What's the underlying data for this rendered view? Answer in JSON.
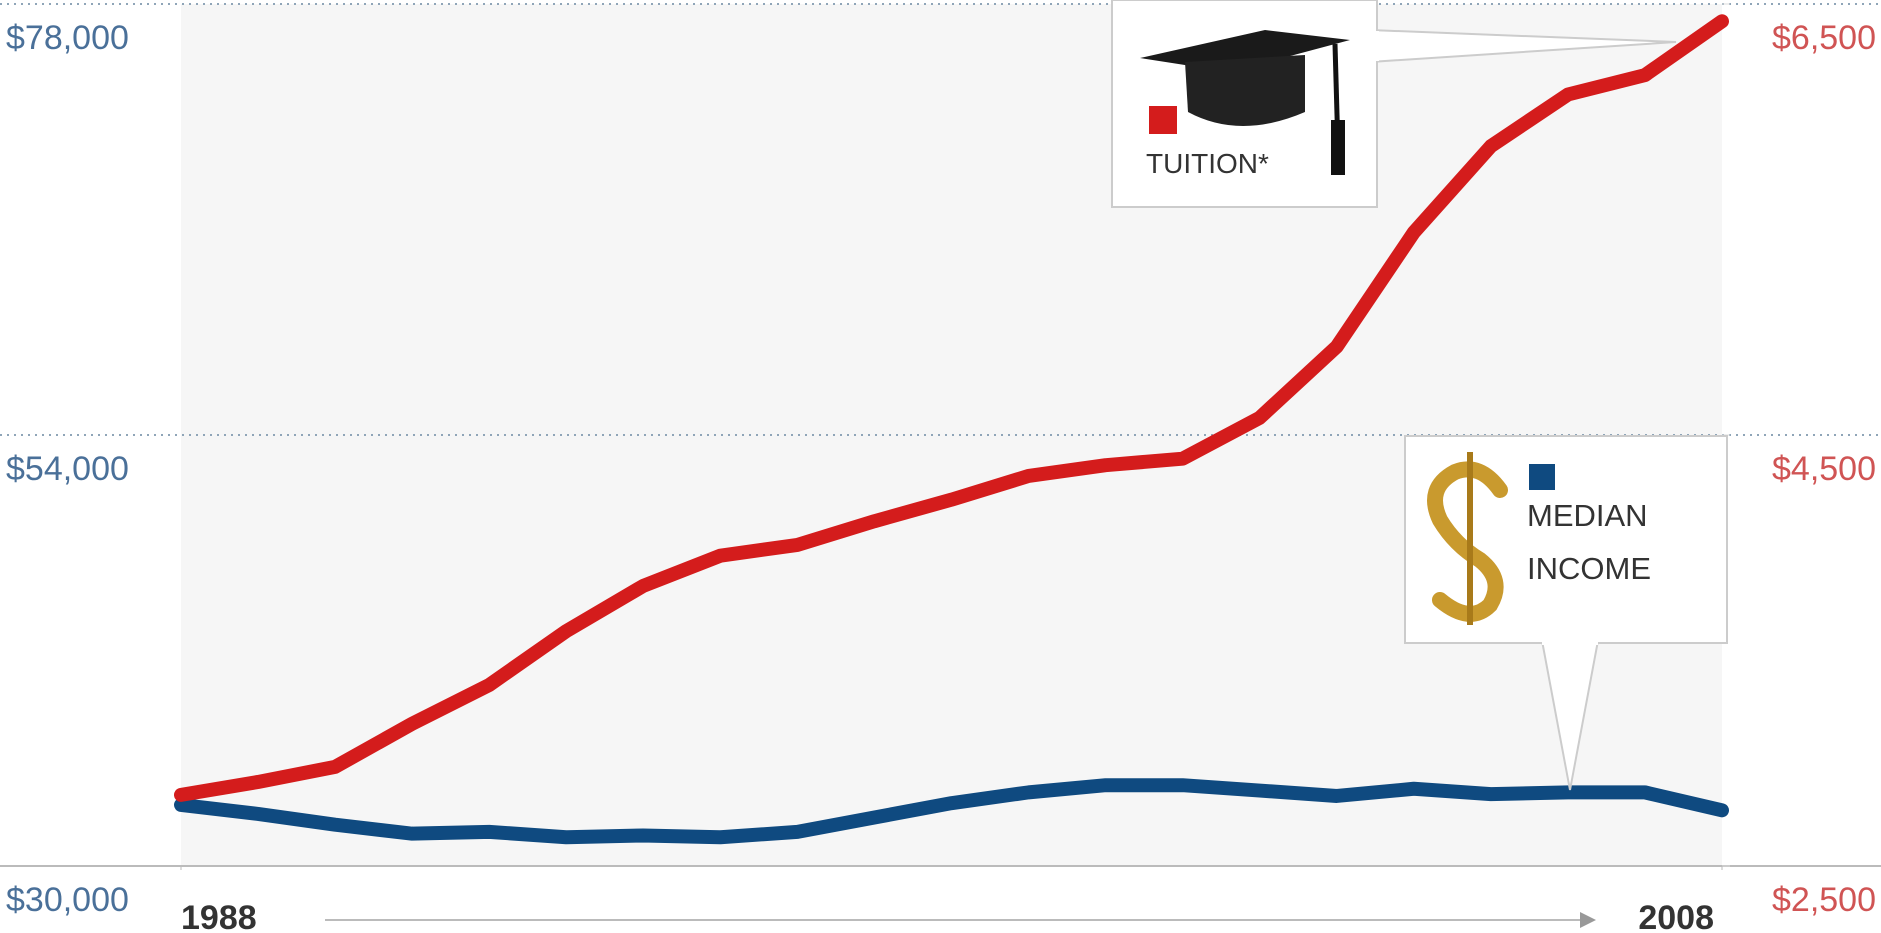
{
  "chart_data": {
    "type": "line",
    "x": [
      1988,
      1989,
      1990,
      1991,
      1992,
      1993,
      1994,
      1995,
      1996,
      1997,
      1998,
      1999,
      2000,
      2001,
      2002,
      2003,
      2004,
      2005,
      2006,
      2007,
      2008
    ],
    "xlim": [
      1988,
      2008
    ],
    "xticks": [
      1988,
      2008
    ],
    "ylim": [
      30000,
      78000
    ],
    "yticks": [
      {
        "value": 30000,
        "label": "$30,000"
      },
      {
        "value": 54000,
        "label": "$54,000"
      },
      {
        "value": 78000,
        "label": "$78,000"
      }
    ],
    "y2lim": [
      2500,
      6500
    ],
    "y2ticks": [
      {
        "value": 2500,
        "label": "$2,500"
      },
      {
        "value": 4500,
        "label": "$4,500"
      },
      {
        "value": 6500,
        "label": "$6,500"
      }
    ],
    "grid": true,
    "series": [
      {
        "name": "TUITION*",
        "color": "#d41c1c",
        "axis": "y2",
        "values": [
          2830,
          2890,
          2960,
          3160,
          3340,
          3590,
          3800,
          3940,
          3990,
          4100,
          4200,
          4310,
          4360,
          4390,
          4580,
          4910,
          5440,
          5840,
          6080,
          6170,
          6420
        ]
      },
      {
        "name": "MEDIAN INCOME",
        "color": "#0f4a80",
        "axis": "y",
        "values": [
          33400,
          32900,
          32300,
          31800,
          31900,
          31600,
          31700,
          31600,
          31900,
          32700,
          33500,
          34100,
          34500,
          34500,
          34200,
          33900,
          34300,
          34000,
          34100,
          34100,
          33100
        ]
      }
    ]
  }
}
